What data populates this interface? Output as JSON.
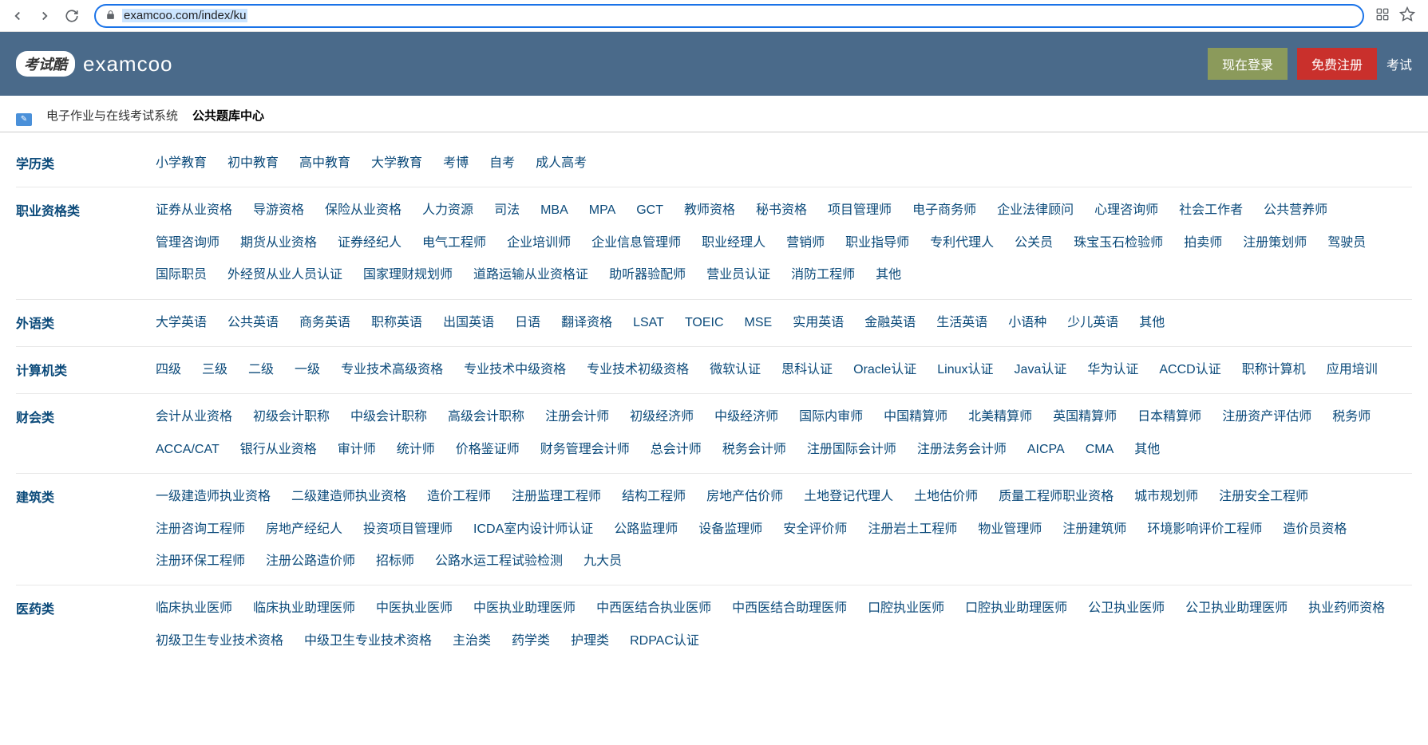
{
  "browser": {
    "url": "examcoo.com/index/ku"
  },
  "header": {
    "logo_badge": "考试酷",
    "logo_text": "examcoo",
    "login_btn": "现在登录",
    "register_btn": "免费注册",
    "nav_link": "考试"
  },
  "tabs": {
    "inactive": "电子作业与在线考试系统",
    "active": "公共题库中心"
  },
  "categories": [
    {
      "label": "学历类",
      "links": [
        "小学教育",
        "初中教育",
        "高中教育",
        "大学教育",
        "考博",
        "自考",
        "成人高考"
      ]
    },
    {
      "label": "职业资格类",
      "links": [
        "证券从业资格",
        "导游资格",
        "保险从业资格",
        "人力资源",
        "司法",
        "MBA",
        "MPA",
        "GCT",
        "教师资格",
        "秘书资格",
        "项目管理师",
        "电子商务师",
        "企业法律顾问",
        "心理咨询师",
        "社会工作者",
        "公共营养师",
        "管理咨询师",
        "期货从业资格",
        "证券经纪人",
        "电气工程师",
        "企业培训师",
        "企业信息管理师",
        "职业经理人",
        "营销师",
        "职业指导师",
        "专利代理人",
        "公关员",
        "珠宝玉石检验师",
        "拍卖师",
        "注册策划师",
        "驾驶员",
        "国际职员",
        "外经贸从业人员认证",
        "国家理财规划师",
        "道路运输从业资格证",
        "助听器验配师",
        "营业员认证",
        "消防工程师",
        "其他"
      ]
    },
    {
      "label": "外语类",
      "links": [
        "大学英语",
        "公共英语",
        "商务英语",
        "职称英语",
        "出国英语",
        "日语",
        "翻译资格",
        "LSAT",
        "TOEIC",
        "MSE",
        "实用英语",
        "金融英语",
        "生活英语",
        "小语种",
        "少儿英语",
        "其他"
      ]
    },
    {
      "label": "计算机类",
      "links": [
        "四级",
        "三级",
        "二级",
        "一级",
        "专业技术高级资格",
        "专业技术中级资格",
        "专业技术初级资格",
        "微软认证",
        "思科认证",
        "Oracle认证",
        "Linux认证",
        "Java认证",
        "华为认证",
        "ACCD认证",
        "职称计算机",
        "应用培训"
      ]
    },
    {
      "label": "财会类",
      "links": [
        "会计从业资格",
        "初级会计职称",
        "中级会计职称",
        "高级会计职称",
        "注册会计师",
        "初级经济师",
        "中级经济师",
        "国际内审师",
        "中国精算师",
        "北美精算师",
        "英国精算师",
        "日本精算师",
        "注册资产评估师",
        "税务师",
        "ACCA/CAT",
        "银行从业资格",
        "审计师",
        "统计师",
        "价格鉴证师",
        "财务管理会计师",
        "总会计师",
        "税务会计师",
        "注册国际会计师",
        "注册法务会计师",
        "AICPA",
        "CMA",
        "其他"
      ]
    },
    {
      "label": "建筑类",
      "links": [
        "一级建造师执业资格",
        "二级建造师执业资格",
        "造价工程师",
        "注册监理工程师",
        "结构工程师",
        "房地产估价师",
        "土地登记代理人",
        "土地估价师",
        "质量工程师职业资格",
        "城市规划师",
        "注册安全工程师",
        "注册咨询工程师",
        "房地产经纪人",
        "投资项目管理师",
        "ICDA室内设计师认证",
        "公路监理师",
        "设备监理师",
        "安全评价师",
        "注册岩土工程师",
        "物业管理师",
        "注册建筑师",
        "环境影响评价工程师",
        "造价员资格",
        "注册环保工程师",
        "注册公路造价师",
        "招标师",
        "公路水运工程试验检测",
        "九大员"
      ]
    },
    {
      "label": "医药类",
      "links": [
        "临床执业医师",
        "临床执业助理医师",
        "中医执业医师",
        "中医执业助理医师",
        "中西医结合执业医师",
        "中西医结合助理医师",
        "口腔执业医师",
        "口腔执业助理医师",
        "公卫执业医师",
        "公卫执业助理医师",
        "执业药师资格",
        "初级卫生专业技术资格",
        "中级卫生专业技术资格",
        "主治类",
        "药学类",
        "护理类",
        "RDPAC认证"
      ]
    }
  ]
}
